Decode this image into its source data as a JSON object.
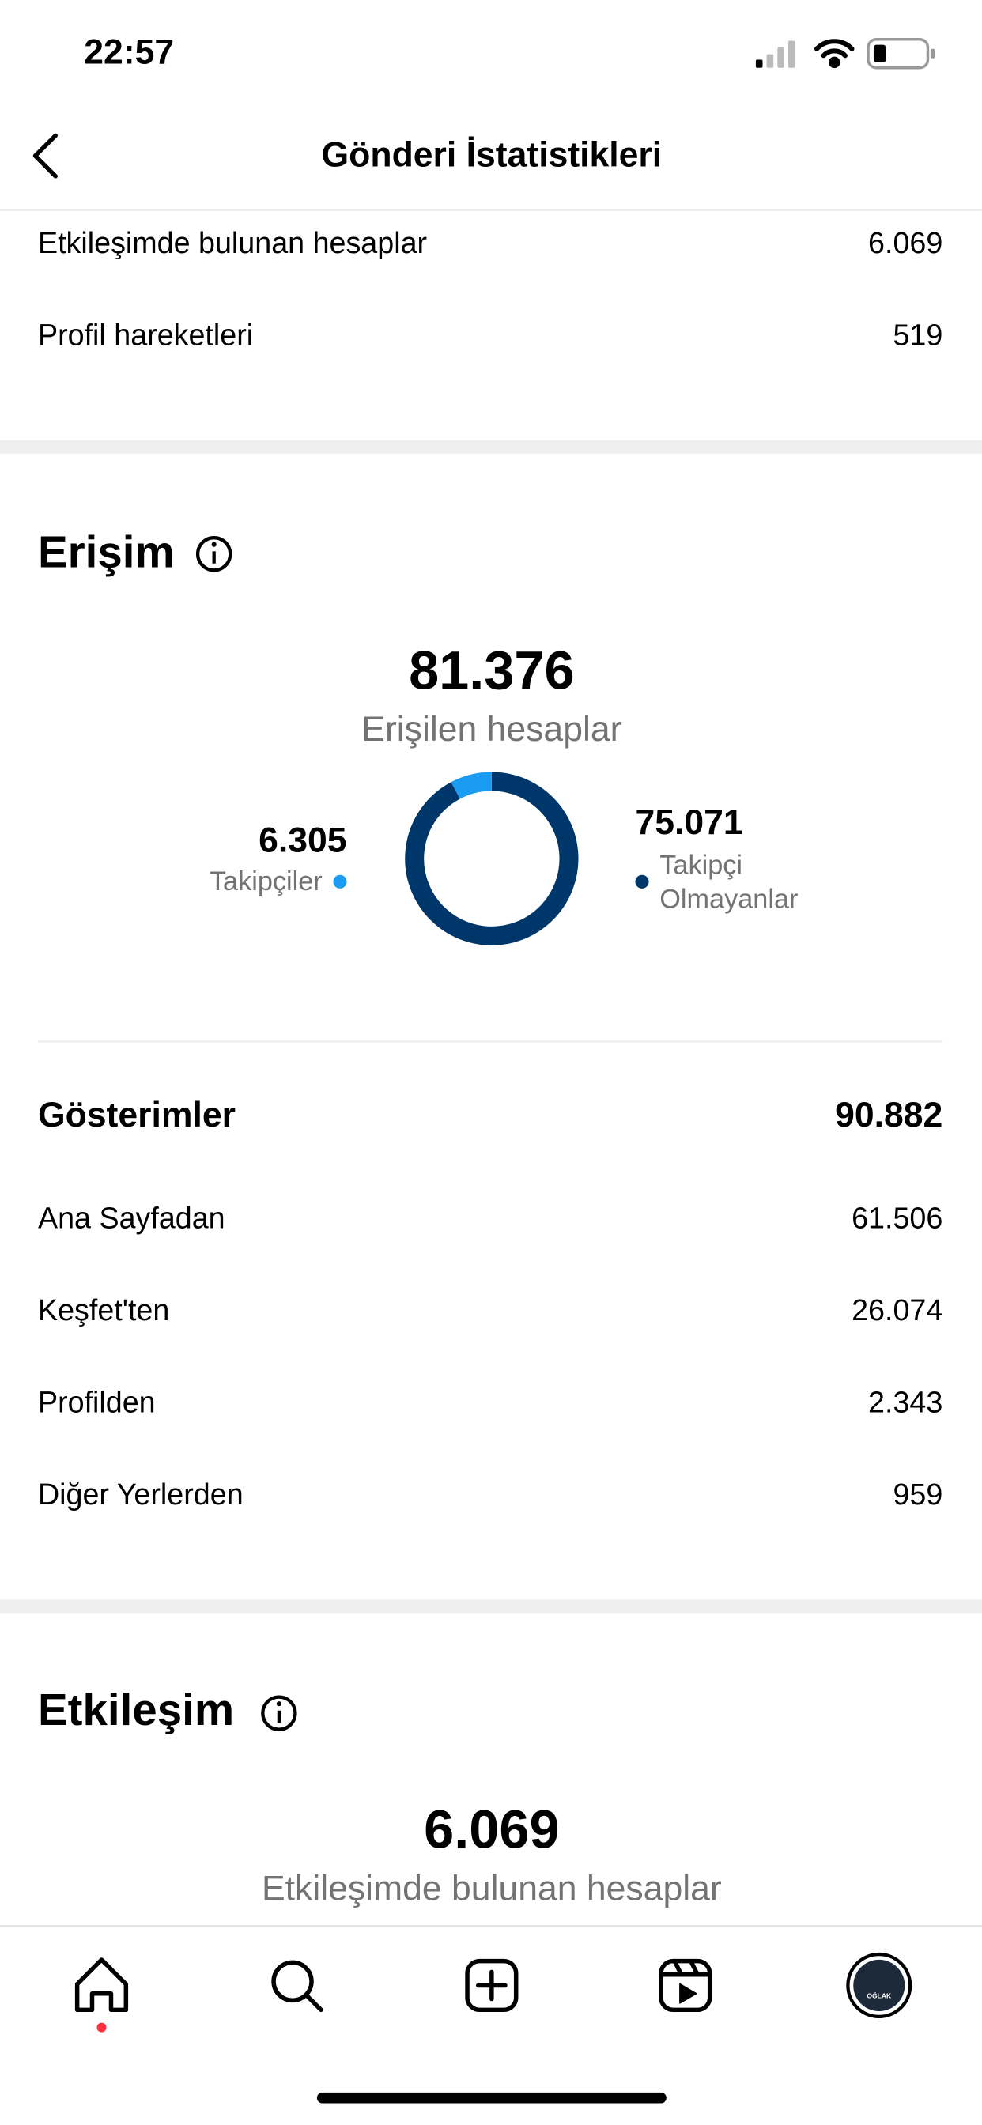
{
  "status": {
    "time": "22:57"
  },
  "header": {
    "title": "Gönderi İstatistikleri"
  },
  "summary": {
    "rows": [
      {
        "label": "Etkileşimde bulunan hesaplar",
        "value": "6.069"
      },
      {
        "label": "Profil hareketleri",
        "value": "519"
      }
    ]
  },
  "reach": {
    "title": "Erişim",
    "total": "81.376",
    "total_label": "Erişilen hesaplar",
    "chart_data": {
      "type": "donut",
      "series": [
        {
          "name": "Takipçiler",
          "color": "#1a9cf2",
          "value": 6305,
          "label": "6.305"
        },
        {
          "name": "Takipçi Olmayanlar",
          "color": "#00376b",
          "value": 75071,
          "label": "75.071"
        }
      ]
    }
  },
  "impressions": {
    "title": "Gösterimler",
    "total": "90.882",
    "rows": [
      {
        "label": "Ana Sayfadan",
        "value": "61.506"
      },
      {
        "label": "Keşfet'ten",
        "value": "26.074"
      },
      {
        "label": "Profilden",
        "value": "2.343"
      },
      {
        "label": "Diğer Yerlerden",
        "value": "959"
      }
    ]
  },
  "engagement": {
    "title": "Etkileşim",
    "total": "6.069",
    "total_label": "Etkileşimde bulunan hesaplar"
  },
  "tabbar": {
    "avatar_text": "OĞLAK"
  }
}
